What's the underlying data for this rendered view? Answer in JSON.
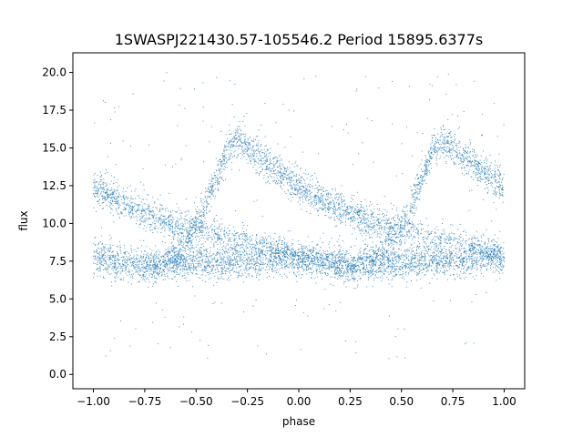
{
  "chart_data": {
    "type": "scatter",
    "title": "1SWASPJ221430.57-105546.2 Period 15895.6377s",
    "xlabel": "phase",
    "ylabel": "flux",
    "xlim": [
      -1.1,
      1.1
    ],
    "ylim": [
      -0.95,
      21.3
    ],
    "xticks": [
      {
        "value": -1.0,
        "label": "−1.00"
      },
      {
        "value": -0.75,
        "label": "−0.75"
      },
      {
        "value": -0.5,
        "label": "−0.50"
      },
      {
        "value": -0.25,
        "label": "−0.25"
      },
      {
        "value": 0.0,
        "label": "0.00"
      },
      {
        "value": 0.25,
        "label": "0.25"
      },
      {
        "value": 0.5,
        "label": "0.50"
      },
      {
        "value": 0.75,
        "label": "0.75"
      },
      {
        "value": 1.0,
        "label": "1.00"
      }
    ],
    "yticks": [
      {
        "value": 0.0,
        "label": "0.0"
      },
      {
        "value": 2.5,
        "label": "2.5"
      },
      {
        "value": 5.0,
        "label": "5.0"
      },
      {
        "value": 7.5,
        "label": "7.5"
      },
      {
        "value": 10.0,
        "label": "10.0"
      },
      {
        "value": 12.5,
        "label": "12.5"
      },
      {
        "value": 15.0,
        "label": "15.0"
      },
      {
        "value": 17.5,
        "label": "17.5"
      },
      {
        "value": 20.0,
        "label": "20.0"
      }
    ],
    "grid": false,
    "marker_color": "#1f77b4",
    "series": [
      {
        "values": [
          {
            "x": -1.0,
            "y": 12.3
          },
          {
            "x": -0.95,
            "y": 12.0
          },
          {
            "x": -0.9,
            "y": 11.6
          },
          {
            "x": -0.85,
            "y": 11.3
          },
          {
            "x": -0.8,
            "y": 11.0
          },
          {
            "x": -0.75,
            "y": 10.7
          },
          {
            "x": -0.7,
            "y": 10.4
          },
          {
            "x": -0.65,
            "y": 10.1
          },
          {
            "x": -0.6,
            "y": 9.9
          },
          {
            "x": -0.55,
            "y": 9.7
          },
          {
            "x": -0.5,
            "y": 9.9
          },
          {
            "x": -0.45,
            "y": 11.2
          },
          {
            "x": -0.4,
            "y": 13.0
          },
          {
            "x": -0.35,
            "y": 14.8
          },
          {
            "x": -0.3,
            "y": 15.5
          },
          {
            "x": -0.25,
            "y": 15.0
          },
          {
            "x": -0.2,
            "y": 14.4
          },
          {
            "x": -0.15,
            "y": 13.9
          },
          {
            "x": -0.1,
            "y": 13.4
          },
          {
            "x": -0.05,
            "y": 12.9
          },
          {
            "x": 0.0,
            "y": 12.4
          },
          {
            "x": 0.05,
            "y": 12.0
          },
          {
            "x": 0.1,
            "y": 11.6
          },
          {
            "x": 0.15,
            "y": 11.3
          },
          {
            "x": 0.2,
            "y": 11.0
          },
          {
            "x": 0.25,
            "y": 10.7
          },
          {
            "x": 0.3,
            "y": 10.4
          },
          {
            "x": 0.35,
            "y": 10.1
          },
          {
            "x": 0.4,
            "y": 9.9
          },
          {
            "x": 0.45,
            "y": 9.7
          },
          {
            "x": 0.5,
            "y": 9.9
          },
          {
            "x": 0.55,
            "y": 11.2
          },
          {
            "x": 0.6,
            "y": 13.0
          },
          {
            "x": 0.65,
            "y": 14.8
          },
          {
            "x": 0.7,
            "y": 15.5
          },
          {
            "x": 0.75,
            "y": 15.0
          },
          {
            "x": 0.8,
            "y": 14.4
          },
          {
            "x": 0.85,
            "y": 13.9
          },
          {
            "x": 0.9,
            "y": 13.4
          },
          {
            "x": 0.95,
            "y": 12.9
          },
          {
            "x": 1.0,
            "y": 12.5
          }
        ]
      },
      {
        "values": [
          {
            "x": -1.0,
            "y": 7.8
          },
          {
            "x": -0.9,
            "y": 7.5
          },
          {
            "x": -0.8,
            "y": 7.3
          },
          {
            "x": -0.7,
            "y": 7.2
          },
          {
            "x": -0.6,
            "y": 7.4
          },
          {
            "x": -0.5,
            "y": 7.5
          },
          {
            "x": -0.4,
            "y": 7.4
          },
          {
            "x": -0.3,
            "y": 7.5
          },
          {
            "x": -0.2,
            "y": 7.6
          },
          {
            "x": -0.1,
            "y": 7.8
          },
          {
            "x": 0.0,
            "y": 7.7
          },
          {
            "x": 0.1,
            "y": 7.5
          },
          {
            "x": 0.2,
            "y": 7.3
          },
          {
            "x": 0.3,
            "y": 7.2
          },
          {
            "x": 0.4,
            "y": 7.4
          },
          {
            "x": 0.5,
            "y": 7.5
          },
          {
            "x": 0.6,
            "y": 7.4
          },
          {
            "x": 0.7,
            "y": 7.5
          },
          {
            "x": 0.8,
            "y": 7.6
          },
          {
            "x": 0.9,
            "y": 7.8
          },
          {
            "x": 1.0,
            "y": 7.7
          }
        ]
      },
      {
        "values": [
          {
            "x": -0.75,
            "y": 7.0
          },
          {
            "x": -0.6,
            "y": 8.0
          },
          {
            "x": -0.5,
            "y": 9.7
          },
          {
            "x": -0.4,
            "y": 9.3
          },
          {
            "x": -0.3,
            "y": 8.9
          },
          {
            "x": -0.2,
            "y": 8.6
          },
          {
            "x": -0.1,
            "y": 8.2
          },
          {
            "x": 0.0,
            "y": 7.8
          },
          {
            "x": 0.1,
            "y": 7.5
          },
          {
            "x": 0.25,
            "y": 7.0
          },
          {
            "x": 0.4,
            "y": 8.0
          },
          {
            "x": 0.5,
            "y": 9.7
          },
          {
            "x": 0.6,
            "y": 9.3
          },
          {
            "x": 0.7,
            "y": 8.9
          },
          {
            "x": 0.8,
            "y": 8.6
          },
          {
            "x": 0.9,
            "y": 8.2
          },
          {
            "x": 1.0,
            "y": 7.8
          }
        ]
      }
    ]
  }
}
